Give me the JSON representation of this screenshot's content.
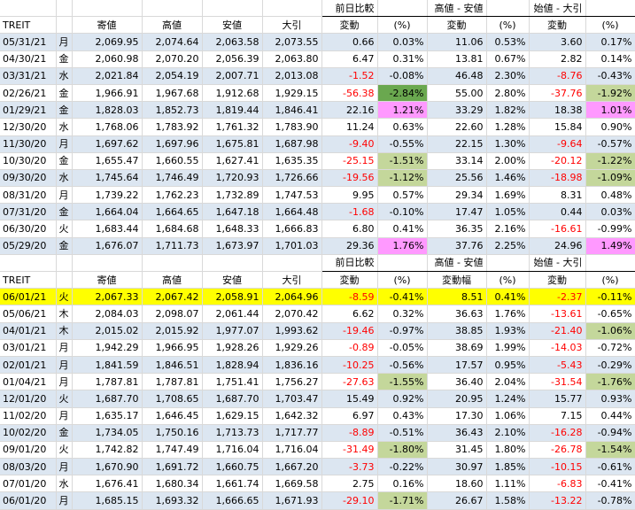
{
  "columns": [
    "TREIT",
    "",
    "寄値",
    "高値",
    "安値",
    "大引",
    "変動",
    "(%)",
    "変動",
    "(%)",
    "変動",
    "(%)"
  ],
  "columns2": [
    "TREIT",
    "",
    "寄値",
    "高値",
    "安値",
    "大引",
    "変動",
    "(%)",
    "変動幅",
    "(%)",
    "変動",
    "(%)"
  ],
  "groups": {
    "prev": "前日比較",
    "hl": "高値 - 安値",
    "oc": "始値 - 大引"
  },
  "table1": [
    [
      "05/31/21",
      "月",
      "2,069.95",
      "2,074.64",
      "2,063.58",
      "2,073.55",
      "0.66",
      "0.03%",
      "11.06",
      "0.53%",
      "3.60",
      "0.17%"
    ],
    [
      "04/30/21",
      "金",
      "2,060.98",
      "2,070.20",
      "2,056.39",
      "2,063.80",
      "6.47",
      "0.31%",
      "13.81",
      "0.67%",
      "2.82",
      "0.14%"
    ],
    [
      "03/31/21",
      "水",
      "2,021.84",
      "2,054.19",
      "2,007.71",
      "2,013.08",
      "-1.52",
      "-0.08%",
      "46.48",
      "2.30%",
      "-8.76",
      "-0.43%"
    ],
    [
      "02/26/21",
      "金",
      "1,966.91",
      "1,967.68",
      "1,912.68",
      "1,929.15",
      "-56.38",
      "-2.84%",
      "55.00",
      "2.80%",
      "-37.76",
      "-1.92%"
    ],
    [
      "01/29/21",
      "金",
      "1,828.03",
      "1,852.73",
      "1,819.44",
      "1,846.41",
      "22.16",
      "1.21%",
      "33.29",
      "1.82%",
      "18.38",
      "1.01%"
    ],
    [
      "12/30/20",
      "水",
      "1,768.06",
      "1,783.92",
      "1,761.32",
      "1,783.90",
      "11.24",
      "0.63%",
      "22.60",
      "1.28%",
      "15.84",
      "0.90%"
    ],
    [
      "11/30/20",
      "月",
      "1,697.62",
      "1,697.96",
      "1,675.81",
      "1,687.98",
      "-9.40",
      "-0.55%",
      "22.15",
      "1.30%",
      "-9.64",
      "-0.57%"
    ],
    [
      "10/30/20",
      "金",
      "1,655.47",
      "1,660.55",
      "1,627.41",
      "1,635.35",
      "-25.15",
      "-1.51%",
      "33.14",
      "2.00%",
      "-20.12",
      "-1.22%"
    ],
    [
      "09/30/20",
      "水",
      "1,745.64",
      "1,746.49",
      "1,720.93",
      "1,726.66",
      "-19.56",
      "-1.12%",
      "25.56",
      "1.46%",
      "-18.98",
      "-1.09%"
    ],
    [
      "08/31/20",
      "月",
      "1,739.22",
      "1,762.23",
      "1,732.89",
      "1,747.53",
      "9.95",
      "0.57%",
      "29.34",
      "1.69%",
      "8.31",
      "0.48%"
    ],
    [
      "07/31/20",
      "金",
      "1,664.04",
      "1,664.65",
      "1,647.18",
      "1,664.48",
      "-1.68",
      "-0.10%",
      "17.47",
      "1.05%",
      "0.44",
      "0.03%"
    ],
    [
      "06/30/20",
      "火",
      "1,683.44",
      "1,684.68",
      "1,648.33",
      "1,666.83",
      "6.80",
      "0.41%",
      "36.35",
      "2.16%",
      "-16.61",
      "-0.99%"
    ],
    [
      "05/29/20",
      "金",
      "1,676.07",
      "1,711.73",
      "1,673.97",
      "1,701.03",
      "29.36",
      "1.76%",
      "37.76",
      "2.25%",
      "24.96",
      "1.49%"
    ]
  ],
  "table2": [
    [
      "06/01/21",
      "火",
      "2,067.33",
      "2,067.42",
      "2,058.91",
      "2,064.96",
      "-8.59",
      "-0.41%",
      "8.51",
      "0.41%",
      "-2.37",
      "-0.11%"
    ],
    [
      "05/06/21",
      "木",
      "2,084.03",
      "2,098.07",
      "2,061.44",
      "2,070.42",
      "6.62",
      "0.32%",
      "36.63",
      "1.76%",
      "-13.61",
      "-0.65%"
    ],
    [
      "04/01/21",
      "木",
      "2,015.02",
      "2,015.92",
      "1,977.07",
      "1,993.62",
      "-19.46",
      "-0.97%",
      "38.85",
      "1.93%",
      "-21.40",
      "-1.06%"
    ],
    [
      "03/01/21",
      "月",
      "1,942.29",
      "1,966.95",
      "1,928.26",
      "1,929.26",
      "-0.89",
      "-0.05%",
      "38.69",
      "1.99%",
      "-14.03",
      "-0.72%"
    ],
    [
      "02/01/21",
      "月",
      "1,841.59",
      "1,846.51",
      "1,828.94",
      "1,836.16",
      "-10.25",
      "-0.56%",
      "17.57",
      "0.95%",
      "-5.43",
      "-0.29%"
    ],
    [
      "01/04/21",
      "月",
      "1,787.81",
      "1,787.81",
      "1,751.41",
      "1,756.27",
      "-27.63",
      "-1.55%",
      "36.40",
      "2.04%",
      "-31.54",
      "-1.76%"
    ],
    [
      "12/01/20",
      "火",
      "1,687.70",
      "1,708.65",
      "1,687.70",
      "1,703.47",
      "15.49",
      "0.92%",
      "20.95",
      "1.24%",
      "15.77",
      "0.93%"
    ],
    [
      "11/02/20",
      "月",
      "1,635.17",
      "1,646.45",
      "1,629.15",
      "1,642.32",
      "6.97",
      "0.43%",
      "17.30",
      "1.06%",
      "7.15",
      "0.44%"
    ],
    [
      "10/02/20",
      "金",
      "1,734.05",
      "1,750.16",
      "1,713.73",
      "1,717.77",
      "-8.89",
      "-0.51%",
      "36.43",
      "2.10%",
      "-16.28",
      "-0.94%"
    ],
    [
      "09/01/20",
      "火",
      "1,742.82",
      "1,747.49",
      "1,716.04",
      "1,716.04",
      "-31.49",
      "-1.80%",
      "31.45",
      "1.80%",
      "-26.78",
      "-1.54%"
    ],
    [
      "08/03/20",
      "月",
      "1,670.90",
      "1,691.72",
      "1,660.75",
      "1,667.20",
      "-3.73",
      "-0.22%",
      "30.97",
      "1.85%",
      "-10.15",
      "-0.61%"
    ],
    [
      "07/01/20",
      "水",
      "1,676.41",
      "1,680.34",
      "1,661.74",
      "1,669.58",
      "2.75",
      "0.16%",
      "18.60",
      "1.11%",
      "-6.83",
      "-0.41%"
    ],
    [
      "06/01/20",
      "月",
      "1,685.15",
      "1,693.32",
      "1,666.65",
      "1,671.93",
      "-29.10",
      "-1.71%",
      "26.67",
      "1.58%",
      "-13.22",
      "-0.78%"
    ]
  ],
  "colors": {
    "band": "#dce6f1",
    "highlight": "#ffff00",
    "negative": "#ff0000",
    "pink": "#ff99ff",
    "green": "#c4d79b",
    "darkgreen": "#6aa84f"
  }
}
